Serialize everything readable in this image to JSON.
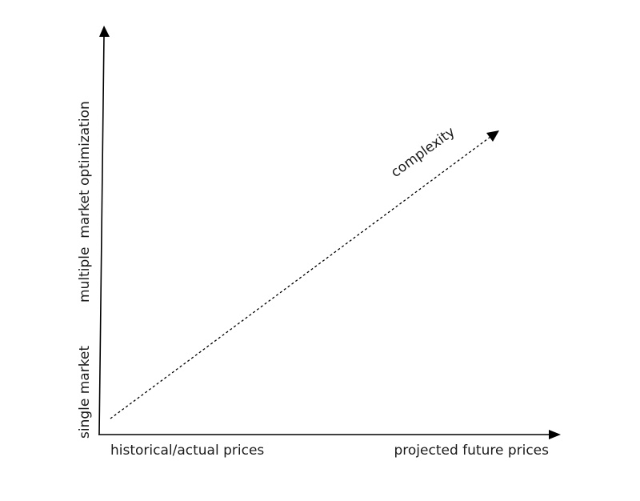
{
  "diagram": {
    "x_axis": {
      "left_label": "historical/actual prices",
      "right_label": "projected future prices"
    },
    "y_axis": {
      "bottom_label": "single market",
      "top_label": "multiple  market optimization"
    },
    "trend": {
      "label": "complexity",
      "style": "dashed"
    }
  }
}
